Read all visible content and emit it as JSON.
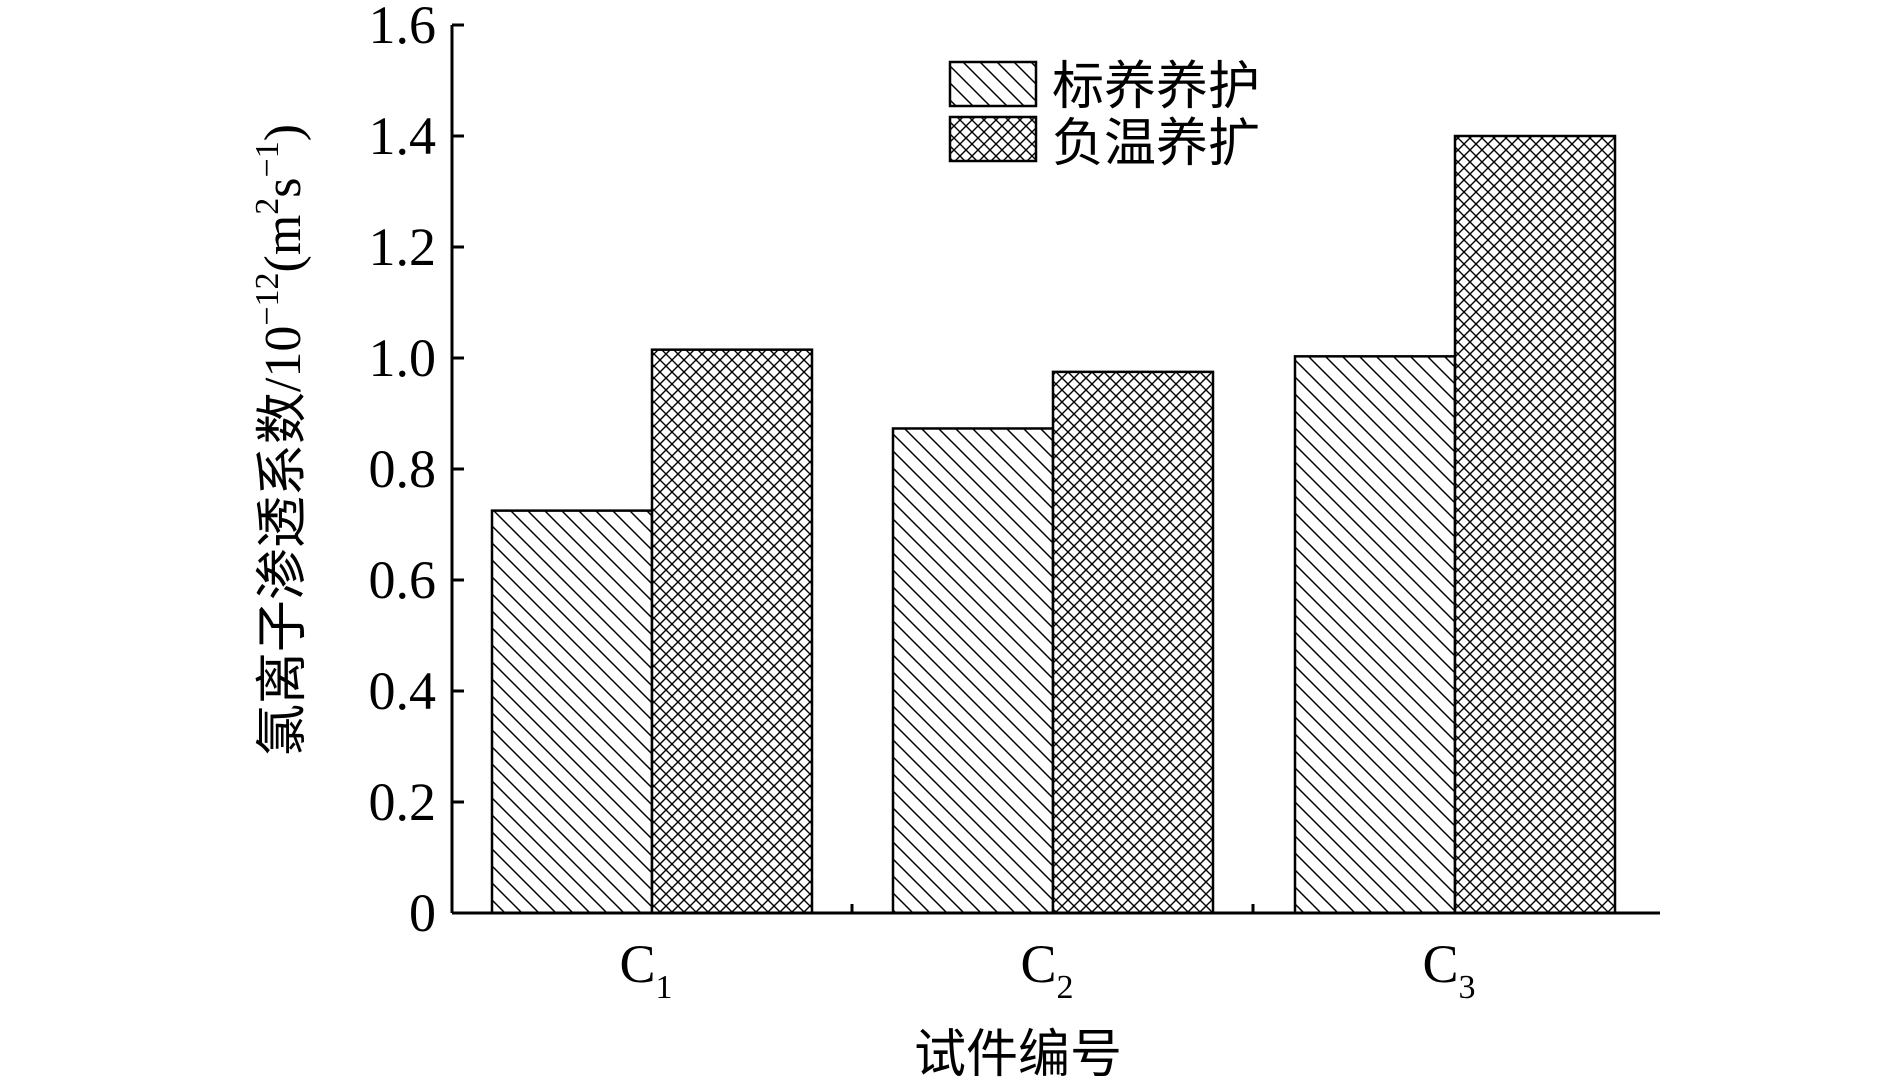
{
  "chart_data": {
    "type": "bar",
    "title": "",
    "xlabel": "试件编号",
    "ylabel": "氯离子渗透系数/10⁻¹²(m²s⁻¹)",
    "ylabel_parts": {
      "prefix": "氯离子渗透系数/10",
      "exp1": "−12",
      "mid": "(m",
      "exp2": "2",
      "s": "s",
      "exp3": "−1",
      "suffix": ")"
    },
    "categories": [
      "C1",
      "C2",
      "C3"
    ],
    "category_labels": [
      {
        "main": "C",
        "sub": "1"
      },
      {
        "main": "C",
        "sub": "2"
      },
      {
        "main": "C",
        "sub": "3"
      }
    ],
    "series": [
      {
        "name": "标养养护",
        "values": [
          0.725,
          0.873,
          1.003
        ],
        "pattern": "diagonal"
      },
      {
        "name": "负温养扩",
        "values": [
          1.015,
          0.975,
          1.4
        ],
        "pattern": "crosshatch"
      }
    ],
    "ylim": [
      0,
      1.6
    ],
    "yticks": [
      0,
      0.2,
      0.4,
      0.6,
      0.8,
      1.0,
      1.2,
      1.4,
      1.6
    ],
    "ytick_labels": [
      "0",
      "0.2",
      "0.4",
      "0.6",
      "0.8",
      "1.0",
      "1.2",
      "1.4",
      "1.6"
    ],
    "grid": false,
    "legend_position": "top-right",
    "colors": {
      "stroke": "#000000",
      "fill": "#ffffff"
    }
  }
}
